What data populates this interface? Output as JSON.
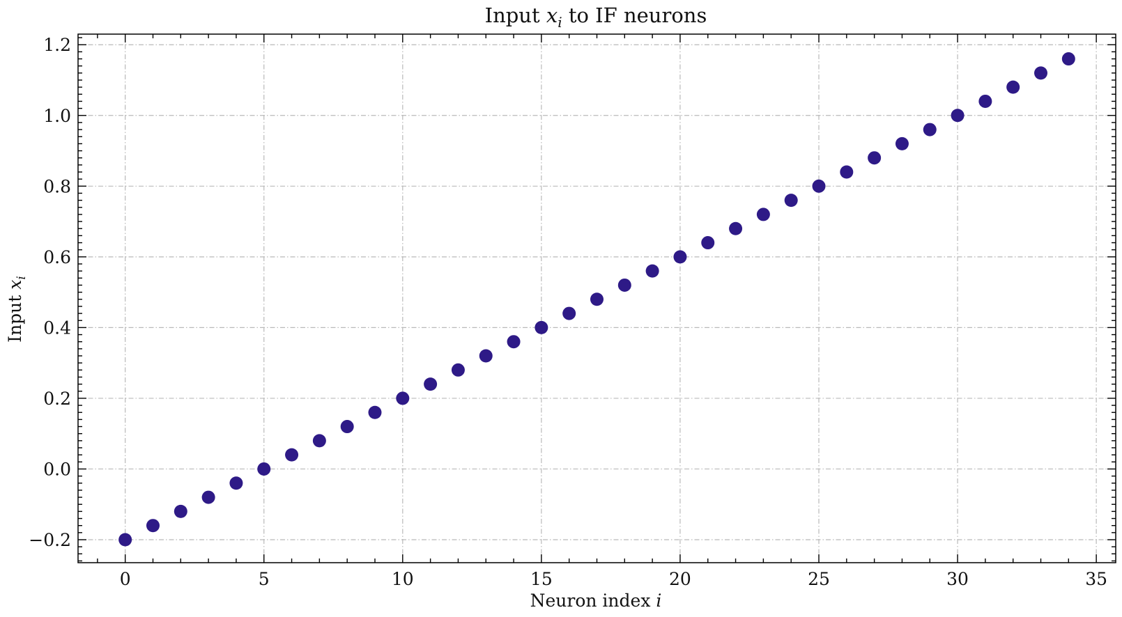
{
  "chart_data": {
    "type": "scatter",
    "title_prefix": "Input ",
    "title_var": "x",
    "title_sub": "i",
    "title_suffix": " to IF neurons",
    "xlabel_prefix": "Neuron index ",
    "xlabel_var": "i",
    "ylabel_prefix": "Input ",
    "ylabel_var": "x",
    "ylabel_sub": "i",
    "xlim": [
      -1.7,
      35.7
    ],
    "ylim": [
      -0.265,
      1.23
    ],
    "xticks": [
      0,
      5,
      10,
      15,
      20,
      25,
      30,
      35
    ],
    "xtick_labels": [
      "0",
      "5",
      "10",
      "15",
      "20",
      "25",
      "30",
      "35"
    ],
    "yticks": [
      -0.2,
      0.0,
      0.2,
      0.4,
      0.6,
      0.8,
      1.0,
      1.2
    ],
    "ytick_labels": [
      "−0.2",
      "0.0",
      "0.2",
      "0.4",
      "0.6",
      "0.8",
      "1.0",
      "1.2"
    ],
    "grid": true,
    "marker_color": "#2e1a87",
    "x": [
      0,
      1,
      2,
      3,
      4,
      5,
      6,
      7,
      8,
      9,
      10,
      11,
      12,
      13,
      14,
      15,
      16,
      17,
      18,
      19,
      20,
      21,
      22,
      23,
      24,
      25,
      26,
      27,
      28,
      29,
      30,
      31,
      32,
      33,
      34
    ],
    "y": [
      -0.2,
      -0.16,
      -0.12,
      -0.08,
      -0.04,
      0.0,
      0.04,
      0.08,
      0.12,
      0.16,
      0.2,
      0.24,
      0.28,
      0.32,
      0.36,
      0.4,
      0.44,
      0.48,
      0.52,
      0.56,
      0.6,
      0.64,
      0.68,
      0.72,
      0.76,
      0.8,
      0.84,
      0.88,
      0.92,
      0.96,
      1.0,
      1.04,
      1.08,
      1.12,
      1.16
    ]
  }
}
